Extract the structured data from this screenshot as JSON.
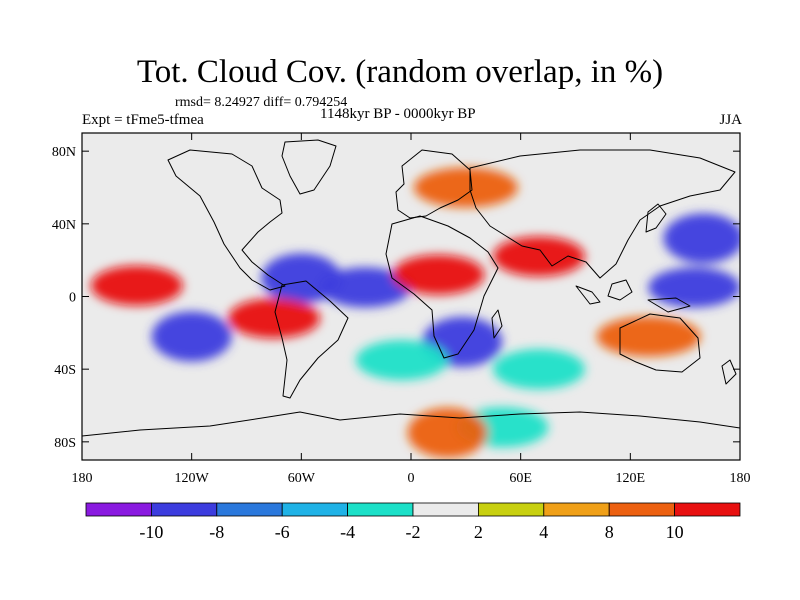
{
  "title": "Tot. Cloud Cov. (random overlap, in %)",
  "stats_line": "rmsd= 8.24927 diff= 0.794254",
  "experiment_label": "Expt = tFme5-tfmea",
  "period_label": "1148kyr BP - 0000kyr BP",
  "season_label": "JJA",
  "lon_ticks": [
    "180",
    "120W",
    "60W",
    "0",
    "60E",
    "120E",
    "180"
  ],
  "lat_ticks": [
    "80N",
    "40N",
    "0",
    "40S",
    "80S"
  ],
  "colorbar": {
    "labels": [
      "-10",
      "-8",
      "-6",
      "-4",
      "-2",
      "2",
      "4",
      "8",
      "10"
    ],
    "colors": [
      "#8a1ae0",
      "#3c3cde",
      "#2a78dc",
      "#1fb2e6",
      "#1ce0c8",
      "#ebebeb",
      "#c8d010",
      "#f0a018",
      "#ec6010",
      "#e81010"
    ]
  },
  "chart_data": {
    "type": "heatmap",
    "map": "global lat-lon difference field",
    "x_range": [
      -180,
      180
    ],
    "y_range": [
      -90,
      90
    ],
    "x_ticks": [
      -180,
      -120,
      -60,
      0,
      60,
      120,
      180
    ],
    "y_ticks": [
      80,
      40,
      0,
      -40,
      -80
    ],
    "levels": [
      -10,
      -8,
      -6,
      -4,
      -2,
      2,
      4,
      8,
      10
    ],
    "rmsd": 8.24927,
    "diff": 0.794254,
    "anomalies": [
      {
        "lon": -25,
        "lat": 5,
        "value": -10
      },
      {
        "lon": -60,
        "lat": 10,
        "value": -9
      },
      {
        "lon": -120,
        "lat": -22,
        "value": -9
      },
      {
        "lon": -150,
        "lat": 6,
        "value": 10
      },
      {
        "lon": -75,
        "lat": -12,
        "value": 10
      },
      {
        "lon": 15,
        "lat": 12,
        "value": 10
      },
      {
        "lon": 70,
        "lat": 22,
        "value": 10
      },
      {
        "lon": 155,
        "lat": 5,
        "value": -10
      },
      {
        "lon": 160,
        "lat": 32,
        "value": -9
      },
      {
        "lon": 28,
        "lat": -25,
        "value": -9
      },
      {
        "lon": 130,
        "lat": -22,
        "value": 8
      },
      {
        "lon": 30,
        "lat": 60,
        "value": 8
      },
      {
        "lon": -5,
        "lat": -35,
        "value": -4
      },
      {
        "lon": 70,
        "lat": -40,
        "value": -4
      },
      {
        "lon": 50,
        "lat": -72,
        "value": -4
      },
      {
        "lon": 20,
        "lat": -75,
        "value": 9
      }
    ]
  }
}
